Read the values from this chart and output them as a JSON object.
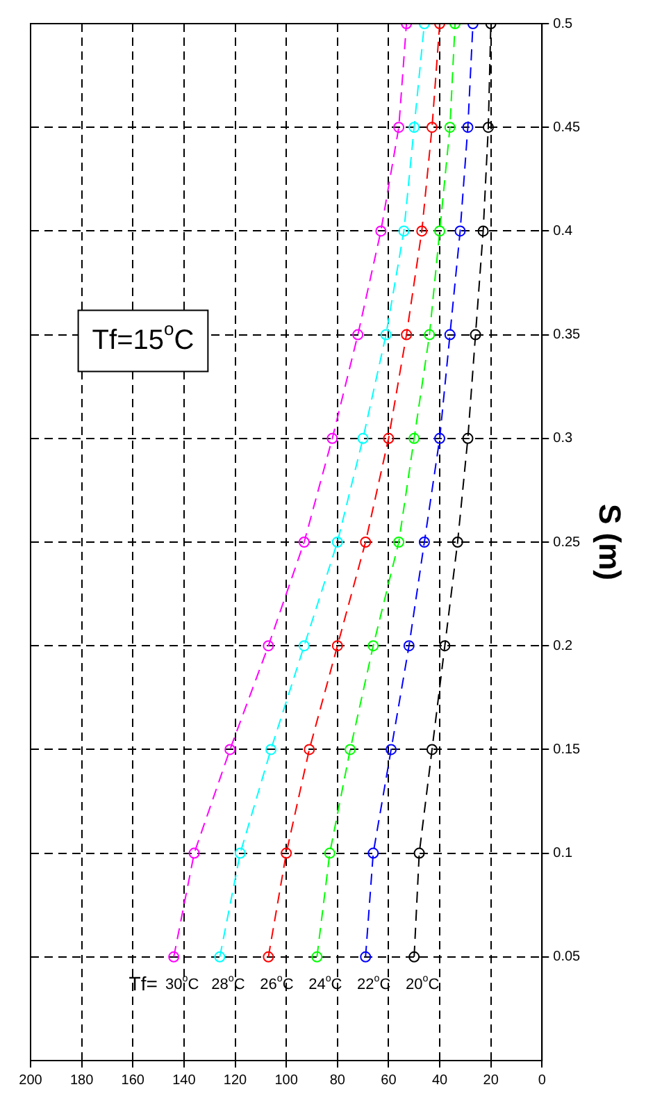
{
  "chart_data": {
    "type": "line",
    "ylabel": "S (m)",
    "series": [
      {
        "name": "30$^{o}$C",
        "color": "#ff00ff",
        "x": [
          144,
          136,
          122,
          107,
          93,
          82,
          72,
          63,
          56,
          53
        ],
        "values": [
          0.05,
          0.1,
          0.15,
          0.2,
          0.25,
          0.3,
          0.35,
          0.4,
          0.45,
          0.5
        ]
      },
      {
        "name": "28$^{o}$C",
        "color": "#00ffff",
        "x": [
          126,
          118,
          106,
          93,
          80,
          70,
          61,
          54,
          50,
          46
        ],
        "values": [
          0.05,
          0.1,
          0.15,
          0.2,
          0.25,
          0.3,
          0.35,
          0.4,
          0.45,
          0.5
        ]
      },
      {
        "name": "26$^{o}$C",
        "color": "#ff0000",
        "x": [
          107,
          100,
          91,
          80,
          69,
          60,
          53,
          47,
          43,
          40
        ],
        "values": [
          0.05,
          0.1,
          0.15,
          0.2,
          0.25,
          0.3,
          0.35,
          0.4,
          0.45,
          0.5
        ]
      },
      {
        "name": "24$^{o}$C",
        "color": "#00ff00",
        "x": [
          88,
          83,
          75,
          66,
          56,
          50,
          44,
          40,
          36,
          34
        ],
        "values": [
          0.05,
          0.1,
          0.15,
          0.2,
          0.25,
          0.3,
          0.35,
          0.4,
          0.45,
          0.5
        ]
      },
      {
        "name": "22$^{o}$C",
        "color": "#0000ff",
        "x": [
          69,
          66,
          59,
          52,
          46,
          40,
          36,
          32,
          29,
          27
        ],
        "values": [
          0.05,
          0.1,
          0.15,
          0.2,
          0.25,
          0.3,
          0.35,
          0.4,
          0.45,
          0.5
        ]
      },
      {
        "name": "20$^{o}$C",
        "color": "#000000",
        "x": [
          50,
          48,
          43,
          38,
          33,
          29,
          26,
          23,
          21,
          20
        ],
        "values": [
          0.05,
          0.1,
          0.15,
          0.2,
          0.25,
          0.3,
          0.35,
          0.4,
          0.45,
          0.5
        ]
      }
    ],
    "annotations": [
      "Tf=",
      "Tf=15$^{o}$C"
    ],
    "xlim": [
      200,
      0
    ],
    "xticks": [
      0,
      20,
      40,
      60,
      80,
      100,
      120,
      140,
      160,
      180,
      200
    ],
    "ylim": [
      0,
      0.5
    ],
    "yticks": [
      0.05,
      0.1,
      0.15,
      0.2,
      0.25,
      0.3,
      0.35,
      0.4,
      0.45,
      0.5
    ],
    "grid": true,
    "legend": false,
    "marker": "circle",
    "line_style": "dashed"
  }
}
